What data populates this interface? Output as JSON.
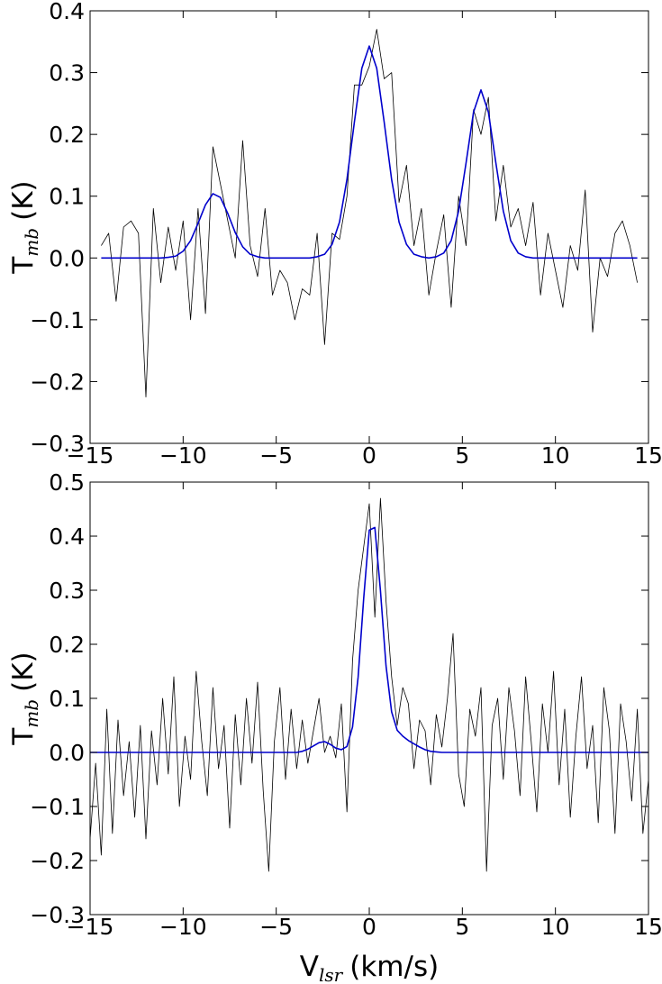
{
  "chart_data": [
    {
      "type": "line",
      "y_label": "T",
      "y_label_sub": "mb",
      "y_label_unit": "(K)",
      "x": [
        -14.4,
        -14,
        -13.6,
        -13.2,
        -12.8,
        -12.4,
        -12,
        -11.6,
        -11.2,
        -10.8,
        -10.4,
        -10,
        -9.6,
        -9.2,
        -8.8,
        -8.4,
        -8,
        -7.6,
        -7.2,
        -6.8,
        -6.4,
        -6,
        -5.6,
        -5.2,
        -4.8,
        -4.4,
        -4,
        -3.6,
        -3.2,
        -2.8,
        -2.4,
        -2,
        -1.6,
        -1.2,
        -0.8,
        -0.4,
        0,
        0.4,
        0.8,
        1.2,
        1.6,
        2,
        2.4,
        2.8,
        3.2,
        3.6,
        4,
        4.4,
        4.8,
        5.2,
        5.6,
        6,
        6.4,
        6.8,
        7.2,
        7.6,
        8,
        8.4,
        8.8,
        9.2,
        9.6,
        10,
        10.4,
        10.8,
        11.2,
        11.6,
        12,
        12.4,
        12.8,
        13.2,
        13.6,
        14,
        14.4
      ],
      "series": [
        {
          "color": "#000000",
          "width": 0.8,
          "values": [
            0.02,
            0.04,
            -0.07,
            0.05,
            0.06,
            0.04,
            -0.225,
            0.08,
            -0.04,
            0.05,
            -0.02,
            0.06,
            -0.1,
            0.08,
            -0.09,
            0.18,
            0.12,
            0.06,
            0,
            0.19,
            0.02,
            -0.03,
            0.08,
            -0.06,
            -0.02,
            -0.04,
            -0.1,
            -0.05,
            -0.06,
            0.04,
            -0.14,
            0.04,
            0.03,
            0.1,
            0.28,
            0.28,
            0.31,
            0.37,
            0.29,
            0.3,
            0.09,
            0.15,
            0.02,
            0.08,
            -0.06,
            0.01,
            0.07,
            -0.08,
            0.1,
            0.02,
            0.24,
            0.2,
            0.26,
            0.06,
            0.15,
            0.05,
            0.08,
            0.02,
            0.09,
            -0.06,
            0.04,
            -0.02,
            -0.08,
            0.02,
            -0.02,
            0.11,
            -0.12,
            0,
            -0.03,
            0.04,
            0.06,
            0.02,
            -0.04
          ]
        },
        {
          "color": "#0000cc",
          "width": 1.6,
          "values": [
            0,
            0,
            0,
            0,
            0,
            0,
            0,
            0,
            0,
            0.001,
            0.003,
            0.011,
            0.028,
            0.056,
            0.086,
            0.104,
            0.098,
            0.072,
            0.041,
            0.018,
            0.006,
            0.002,
            0,
            0,
            0,
            0,
            0,
            0,
            0,
            0.002,
            0.006,
            0.022,
            0.058,
            0.127,
            0.22,
            0.307,
            0.343,
            0.307,
            0.22,
            0.127,
            0.058,
            0.022,
            0.006,
            0.002,
            0,
            0.002,
            0.008,
            0.028,
            0.076,
            0.154,
            0.236,
            0.272,
            0.236,
            0.154,
            0.076,
            0.028,
            0.008,
            0.002,
            0,
            0,
            0,
            0,
            0,
            0,
            0,
            0,
            0,
            0,
            0,
            0,
            0,
            0,
            0
          ]
        }
      ],
      "xlim": [
        -15,
        15
      ],
      "xticks": [
        {
          "value": -15,
          "label": "−15"
        },
        {
          "value": -10,
          "label": "−10"
        },
        {
          "value": -5,
          "label": "−5"
        },
        0,
        5,
        10,
        15
      ],
      "ylim": [
        -0.3,
        0.4
      ],
      "yticks": [
        {
          "value": -0.3,
          "label": "−0.3"
        },
        {
          "value": -0.2,
          "label": "−0.2"
        },
        {
          "value": -0.1,
          "label": "−0.1"
        },
        {
          "value": 0,
          "label": "0.0"
        },
        0.1,
        0.2,
        0.3,
        0.4
      ]
    },
    {
      "type": "line",
      "y_label": "T",
      "y_label_sub": "mb",
      "y_label_unit": "(K)",
      "x_label": "V",
      "x_label_sub": "lsr",
      "x_label_unit": "(km/s)",
      "x": [
        -15,
        -14.7,
        -14.4,
        -14.1,
        -13.8,
        -13.5,
        -13.2,
        -12.9,
        -12.6,
        -12.3,
        -12,
        -11.7,
        -11.4,
        -11.1,
        -10.8,
        -10.5,
        -10.2,
        -9.9,
        -9.6,
        -9.3,
        -9,
        -8.7,
        -8.4,
        -8.1,
        -7.8,
        -7.5,
        -7.2,
        -6.9,
        -6.6,
        -6.3,
        -6,
        -5.7,
        -5.4,
        -5.1,
        -4.8,
        -4.5,
        -4.2,
        -3.9,
        -3.6,
        -3.3,
        -3,
        -2.7,
        -2.4,
        -2.1,
        -1.8,
        -1.5,
        -1.2,
        -0.9,
        -0.6,
        -0.3,
        0,
        0.3,
        0.6,
        0.9,
        1.2,
        1.5,
        1.8,
        2.1,
        2.4,
        2.7,
        3,
        3.3,
        3.6,
        3.9,
        4.2,
        4.5,
        4.8,
        5.1,
        5.4,
        5.7,
        6,
        6.3,
        6.6,
        6.9,
        7.2,
        7.5,
        7.8,
        8.1,
        8.4,
        8.7,
        9,
        9.3,
        9.6,
        9.9,
        10.2,
        10.5,
        10.8,
        11.1,
        11.4,
        11.7,
        12,
        12.3,
        12.6,
        12.9,
        13.2,
        13.5,
        13.8,
        14.1,
        14.4,
        14.7,
        15
      ],
      "series": [
        {
          "color": "#000000",
          "width": 0.8,
          "values": [
            -0.16,
            -0.02,
            -0.19,
            0.08,
            -0.15,
            0.06,
            -0.08,
            0.02,
            -0.12,
            0.05,
            -0.16,
            0.04,
            -0.06,
            0.1,
            -0.04,
            0.14,
            -0.1,
            0.03,
            -0.05,
            0.15,
            0.02,
            -0.08,
            0.12,
            -0.03,
            0.05,
            -0.14,
            0.07,
            -0.06,
            0.1,
            -0.02,
            0.13,
            -0.07,
            -0.22,
            0.02,
            0.12,
            -0.05,
            0.08,
            -0.03,
            0.06,
            -0.02,
            0.04,
            0.1,
            0,
            0.03,
            -0.01,
            0.09,
            -0.11,
            0.17,
            0.3,
            0.38,
            0.46,
            0.25,
            0.47,
            0.28,
            0.14,
            0.05,
            0.12,
            0.09,
            -0.03,
            0.06,
            0.04,
            -0.06,
            0.07,
            0.01,
            0.1,
            0.22,
            -0.04,
            -0.1,
            0.08,
            0.03,
            0.12,
            -0.22,
            0.05,
            0.1,
            -0.05,
            0.12,
            0.04,
            -0.08,
            0.14,
            0.02,
            -0.11,
            0.09,
            0,
            0.15,
            -0.06,
            0.08,
            -0.12,
            0.03,
            0.14,
            -0.03,
            0.05,
            -0.13,
            0.12,
            0.04,
            -0.15,
            0.09,
            0.02,
            -0.09,
            0.08,
            -0.15,
            -0.05
          ]
        },
        {
          "color": "#0000cc",
          "width": 1.6,
          "values": [
            0,
            0,
            0,
            0,
            0,
            0,
            0,
            0,
            0,
            0,
            0,
            0,
            0,
            0,
            0,
            0,
            0,
            0,
            0,
            0,
            0,
            0,
            0,
            0,
            0,
            0,
            0,
            0,
            0,
            0,
            0,
            0,
            0,
            0,
            0,
            0,
            0,
            0,
            0.002,
            0.006,
            0.012,
            0.018,
            0.02,
            0.015,
            0.008,
            0.005,
            0.011,
            0.047,
            0.139,
            0.285,
            0.411,
            0.416,
            0.299,
            0.16,
            0.075,
            0.041,
            0.03,
            0.022,
            0.016,
            0.01,
            0.005,
            0.002,
            0.001,
            0,
            0,
            0,
            0,
            0,
            0,
            0,
            0,
            0,
            0,
            0,
            0,
            0,
            0,
            0,
            0,
            0,
            0,
            0,
            0,
            0,
            0,
            0,
            0,
            0,
            0,
            0,
            0,
            0,
            0,
            0,
            0,
            0,
            0,
            0,
            0,
            0,
            0
          ]
        }
      ],
      "xlim": [
        -15,
        15
      ],
      "xticks": [
        {
          "value": -15,
          "label": "−15"
        },
        {
          "value": -10,
          "label": "−10"
        },
        {
          "value": -5,
          "label": "−5"
        },
        0,
        5,
        10,
        15
      ],
      "ylim": [
        -0.3,
        0.5
      ],
      "yticks": [
        {
          "value": -0.3,
          "label": "−0.3"
        },
        {
          "value": -0.2,
          "label": "−0.2"
        },
        {
          "value": -0.1,
          "label": "−0.1"
        },
        {
          "value": 0,
          "label": "0.0"
        },
        0.1,
        0.2,
        0.3,
        0.4,
        0.5
      ]
    }
  ]
}
